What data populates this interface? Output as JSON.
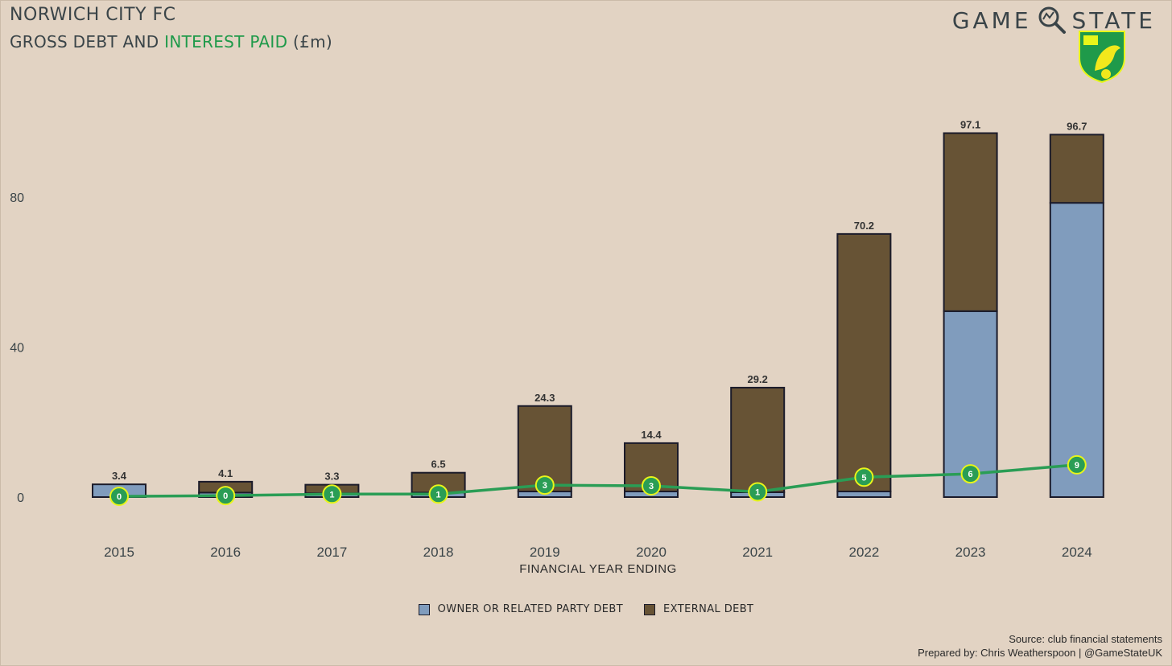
{
  "header": {
    "title": "NORWICH CITY FC",
    "subtitle_prefix": "GROSS DEBT AND ",
    "subtitle_highlight": "INTEREST PAID",
    "subtitle_suffix": " (£m)",
    "brand_left": "GAME",
    "brand_right": "STATE"
  },
  "colors": {
    "owner": "#809cbd",
    "external": "#675335",
    "interest": "#2a9d55",
    "marker_stroke": "#e8f51a",
    "background": "#e2d3c3"
  },
  "footer": {
    "source": "Source: club financial statements",
    "prepared": "Prepared by: Chris Weatherspoon | @GameStateUK"
  },
  "chart_data": {
    "type": "bar",
    "stacked": true,
    "categories": [
      "2015",
      "2016",
      "2017",
      "2018",
      "2019",
      "2020",
      "2021",
      "2022",
      "2023",
      "2024"
    ],
    "xlabel": "FINANCIAL YEAR ENDING",
    "ylabel": "",
    "ylim": [
      0,
      105
    ],
    "yticks": [
      0,
      40,
      80
    ],
    "grid": false,
    "legend_position": "bottom",
    "series": [
      {
        "name": "OWNER OR RELATED PARTY DEBT",
        "values": [
          3.4,
          1.2,
          1.0,
          1.2,
          1.5,
          1.5,
          1.3,
          1.5,
          49.6,
          78.5
        ]
      },
      {
        "name": "EXTERNAL DEBT",
        "values": [
          0,
          2.9,
          2.3,
          5.3,
          22.8,
          12.9,
          27.9,
          68.7,
          47.5,
          18.2
        ]
      }
    ],
    "totals": [
      "3.4",
      "4.1",
      "3.3",
      "6.5",
      "24.3",
      "14.4",
      "29.2",
      "70.2",
      "97.1",
      "96.7"
    ],
    "interest": {
      "values": [
        0.2,
        0.4,
        0.8,
        0.8,
        3.2,
        3.0,
        1.4,
        5.3,
        6.2,
        8.6
      ],
      "labels": [
        "0",
        "0",
        "1",
        "1",
        "3",
        "3",
        "1",
        "5",
        "6",
        "9"
      ]
    }
  }
}
